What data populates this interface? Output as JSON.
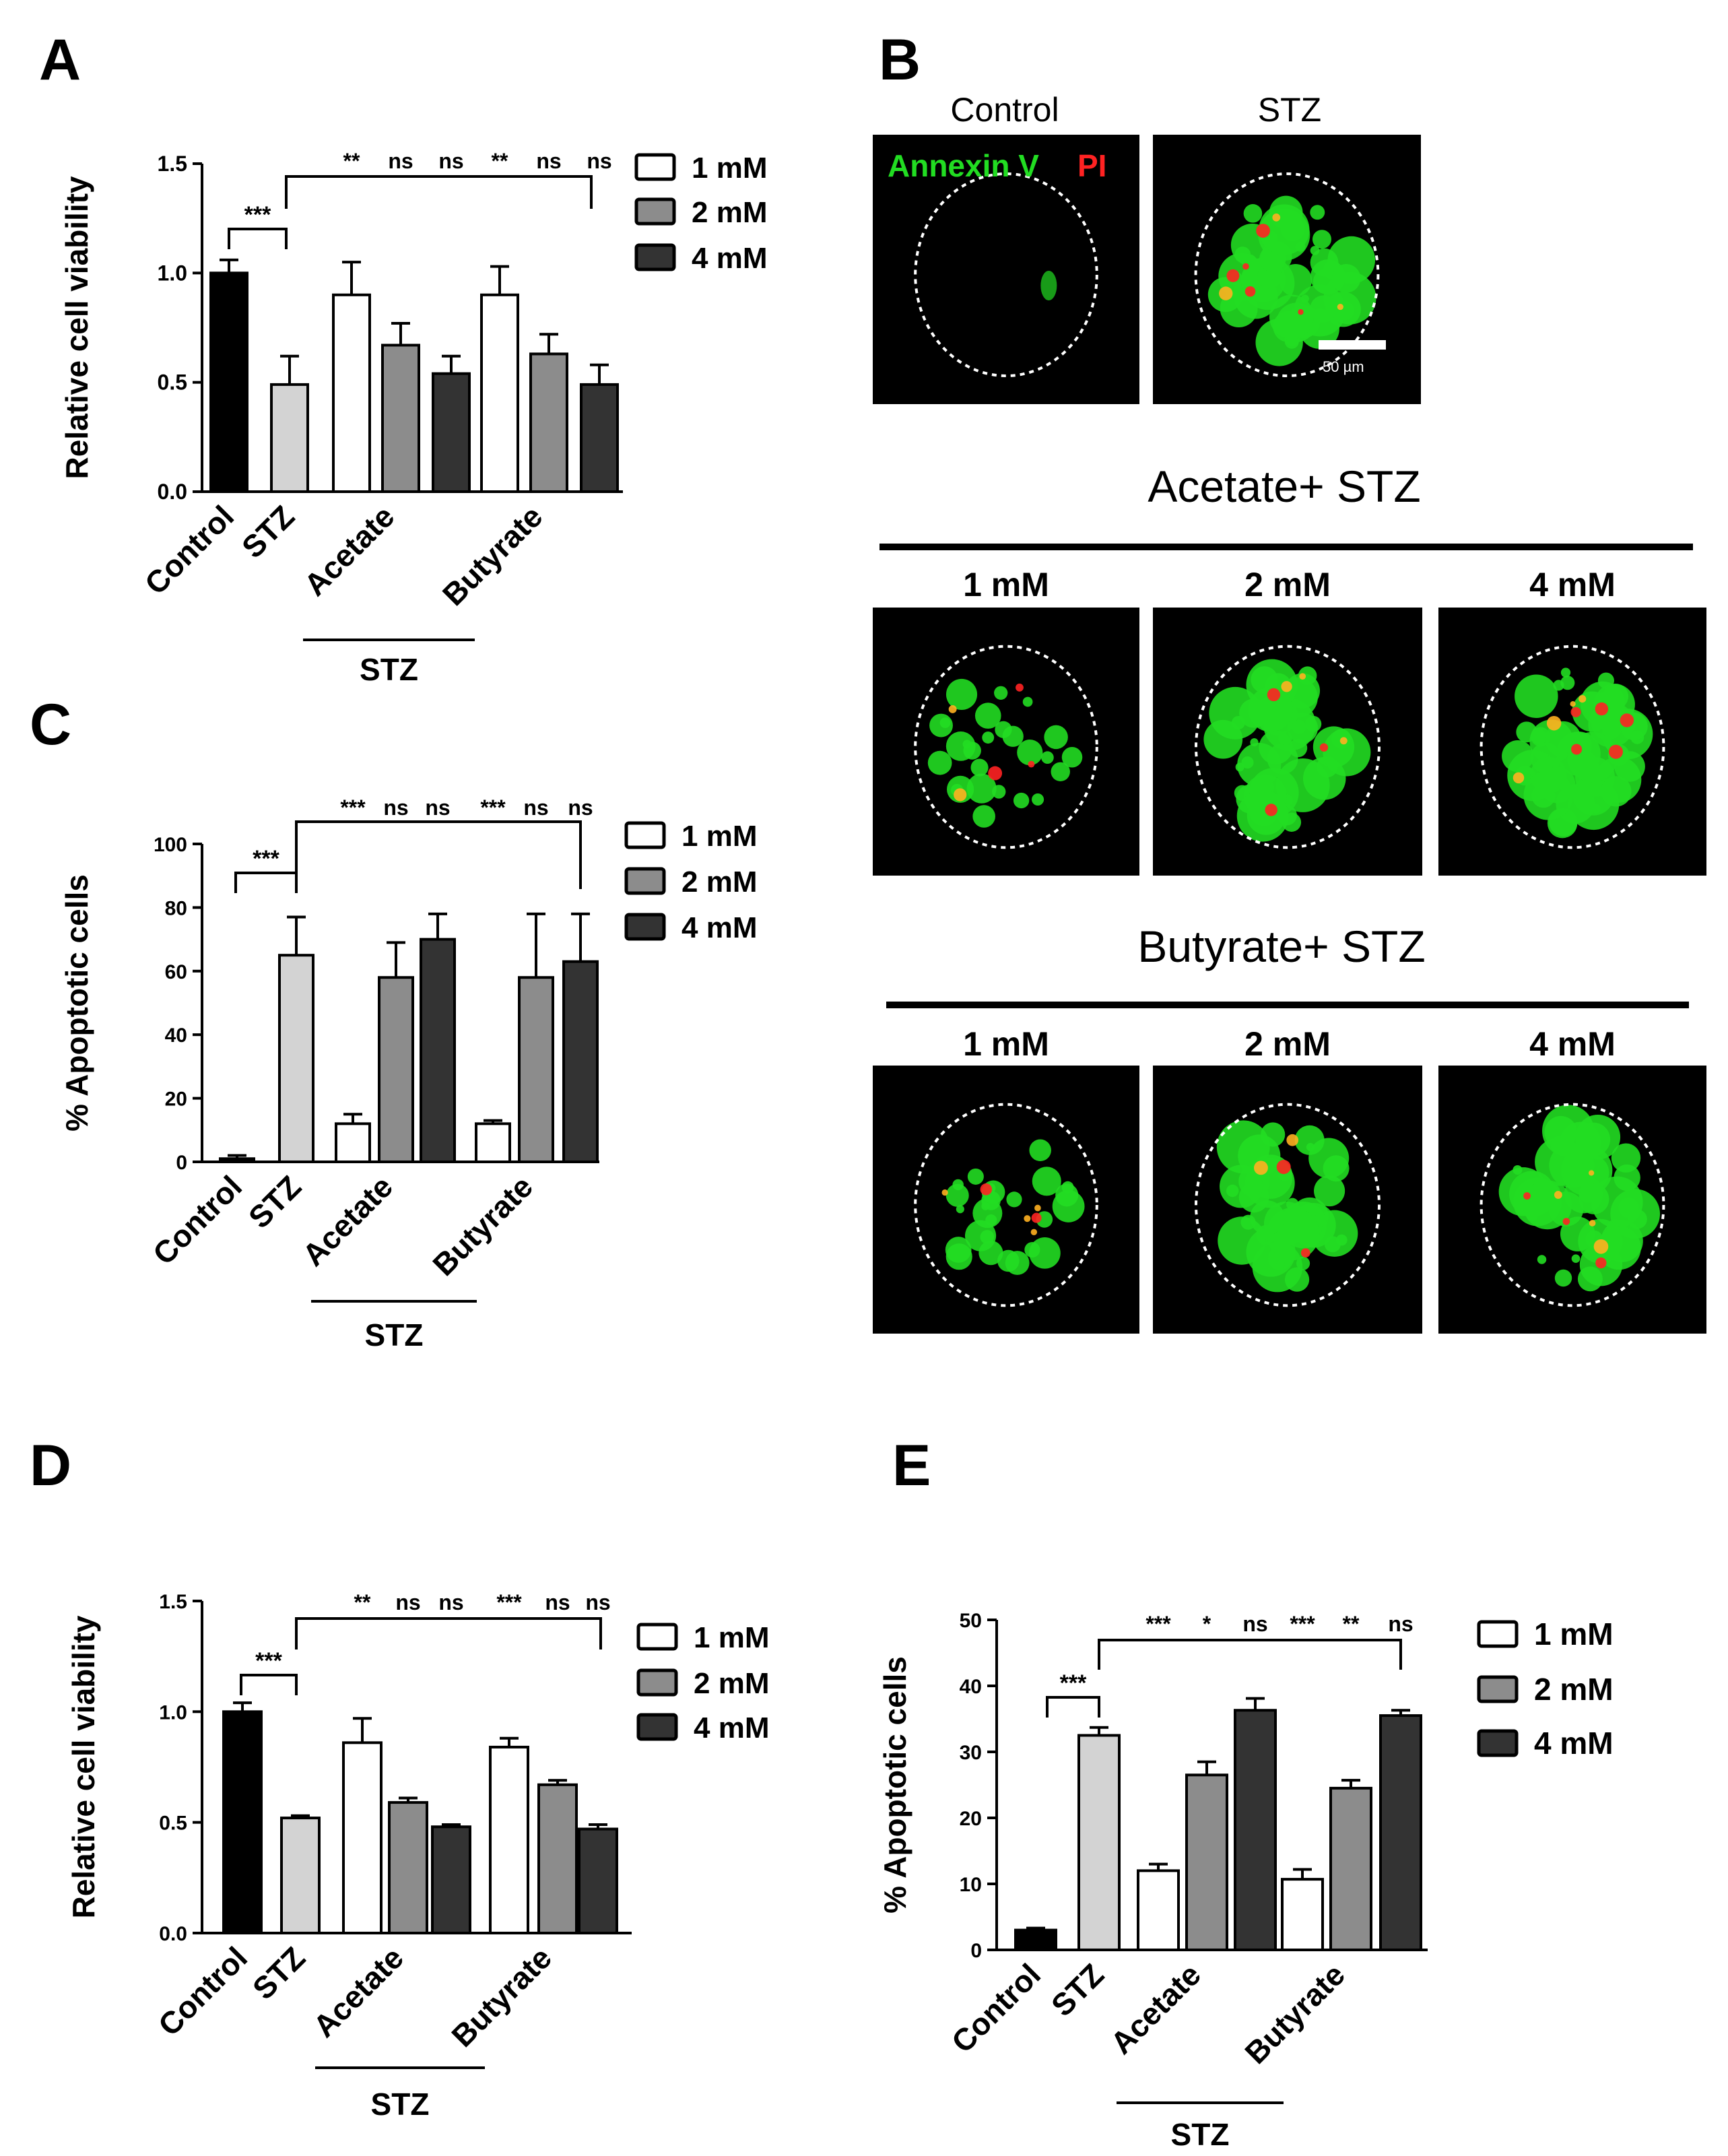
{
  "panels": {
    "A": "A",
    "B": "B",
    "C": "C",
    "D": "D",
    "E": "E"
  },
  "colors": {
    "control": "#000000",
    "stz": "#d3d3d3",
    "mM1": "#ffffff",
    "mM2": "#8c8c8c",
    "mM4": "#333333",
    "annexin": "#22dd22",
    "pi": "#ff2222"
  },
  "legend": {
    "l1": "1 mM",
    "l2": "2 mM",
    "l4": "4 mM"
  },
  "microscopy": {
    "top_labels": {
      "control": "Control",
      "stz": "STZ"
    },
    "stain_label_a": "Annexin V",
    "stain_label_b": "PI",
    "scale_bar": "50 µm",
    "acetate_title": "Acetate+ STZ",
    "butyrate_title": "Butyrate+ STZ",
    "doses": [
      "1 mM",
      "2 mM",
      "4 mM"
    ]
  },
  "chart_data": [
    {
      "id": "A",
      "type": "bar",
      "ylabel": "Relative cell viability",
      "ylim": [
        0,
        1.5
      ],
      "yticks": [
        "0.0",
        "0.5",
        "1.0",
        "1.5"
      ],
      "categories": [
        "Control",
        "STZ",
        "Acetate",
        "Butyrate"
      ],
      "group_label": "STZ",
      "bars": [
        {
          "group": "Control",
          "series": "control",
          "value": 1.0,
          "err": 0.06
        },
        {
          "group": "STZ",
          "series": "stz",
          "value": 0.49,
          "err": 0.13
        },
        {
          "group": "Acetate",
          "series": "1 mM",
          "value": 0.9,
          "err": 0.15
        },
        {
          "group": "Acetate",
          "series": "2 mM",
          "value": 0.67,
          "err": 0.1
        },
        {
          "group": "Acetate",
          "series": "4 mM",
          "value": 0.54,
          "err": 0.08
        },
        {
          "group": "Butyrate",
          "series": "1 mM",
          "value": 0.9,
          "err": 0.13
        },
        {
          "group": "Butyrate",
          "series": "2 mM",
          "value": 0.63,
          "err": 0.09
        },
        {
          "group": "Butyrate",
          "series": "4 mM",
          "value": 0.49,
          "err": 0.09
        }
      ],
      "sig_control_stz": "***",
      "sig_marks": [
        "**",
        "ns",
        "ns",
        "**",
        "ns",
        "ns"
      ]
    },
    {
      "id": "C",
      "type": "bar",
      "ylabel": "% Apoptotic cells",
      "ylim": [
        0,
        100
      ],
      "yticks": [
        "0",
        "20",
        "40",
        "60",
        "80",
        "100"
      ],
      "categories": [
        "Control",
        "STZ",
        "Acetate",
        "Butyrate"
      ],
      "group_label": "STZ",
      "bars": [
        {
          "group": "Control",
          "series": "control",
          "value": 1,
          "err": 1
        },
        {
          "group": "STZ",
          "series": "stz",
          "value": 65,
          "err": 12
        },
        {
          "group": "Acetate",
          "series": "1 mM",
          "value": 12,
          "err": 3
        },
        {
          "group": "Acetate",
          "series": "2 mM",
          "value": 58,
          "err": 11
        },
        {
          "group": "Acetate",
          "series": "4 mM",
          "value": 70,
          "err": 8
        },
        {
          "group": "Butyrate",
          "series": "1 mM",
          "value": 12,
          "err": 1
        },
        {
          "group": "Butyrate",
          "series": "2 mM",
          "value": 58,
          "err": 20
        },
        {
          "group": "Butyrate",
          "series": "4 mM",
          "value": 63,
          "err": 15
        }
      ],
      "sig_control_stz": "***",
      "sig_marks": [
        "***",
        "ns",
        "ns",
        "***",
        "ns",
        "ns"
      ]
    },
    {
      "id": "D",
      "type": "bar",
      "ylabel": "Relative cell viability",
      "ylim": [
        0,
        1.5
      ],
      "yticks": [
        "0.0",
        "0.5",
        "1.0",
        "1.5"
      ],
      "categories": [
        "Control",
        "STZ",
        "Acetate",
        "Butyrate"
      ],
      "group_label": "STZ",
      "bars": [
        {
          "group": "Control",
          "series": "control",
          "value": 1.0,
          "err": 0.04
        },
        {
          "group": "STZ",
          "series": "stz",
          "value": 0.52,
          "err": 0.01
        },
        {
          "group": "Acetate",
          "series": "1 mM",
          "value": 0.86,
          "err": 0.11
        },
        {
          "group": "Acetate",
          "series": "2 mM",
          "value": 0.59,
          "err": 0.02
        },
        {
          "group": "Acetate",
          "series": "4 mM",
          "value": 0.48,
          "err": 0.01
        },
        {
          "group": "Butyrate",
          "series": "1 mM",
          "value": 0.84,
          "err": 0.04
        },
        {
          "group": "Butyrate",
          "series": "2 mM",
          "value": 0.67,
          "err": 0.02
        },
        {
          "group": "Butyrate",
          "series": "4 mM",
          "value": 0.47,
          "err": 0.02
        }
      ],
      "sig_control_stz": "***",
      "sig_marks": [
        "**",
        "ns",
        "ns",
        "***",
        "ns",
        "ns"
      ]
    },
    {
      "id": "E",
      "type": "bar",
      "ylabel": "% Apoptotic cells",
      "ylim": [
        0,
        50
      ],
      "yticks": [
        "0",
        "10",
        "20",
        "30",
        "40",
        "50"
      ],
      "categories": [
        "Control",
        "STZ",
        "Acetate",
        "Butyrate"
      ],
      "group_label": "STZ",
      "bars": [
        {
          "group": "Control",
          "series": "control",
          "value": 3,
          "err": 0.3
        },
        {
          "group": "STZ",
          "series": "stz",
          "value": 32.5,
          "err": 1.2
        },
        {
          "group": "Acetate",
          "series": "1 mM",
          "value": 12,
          "err": 1
        },
        {
          "group": "Acetate",
          "series": "2 mM",
          "value": 26.5,
          "err": 2
        },
        {
          "group": "Acetate",
          "series": "4 mM",
          "value": 36.3,
          "err": 1.8
        },
        {
          "group": "Butyrate",
          "series": "1 mM",
          "value": 10.7,
          "err": 1.5
        },
        {
          "group": "Butyrate",
          "series": "2 mM",
          "value": 24.5,
          "err": 1.2
        },
        {
          "group": "Butyrate",
          "series": "4 mM",
          "value": 35.5,
          "err": 0.8
        }
      ],
      "sig_control_stz": "***",
      "sig_marks": [
        "***",
        "*",
        "ns",
        "***",
        "**",
        "ns"
      ]
    }
  ]
}
